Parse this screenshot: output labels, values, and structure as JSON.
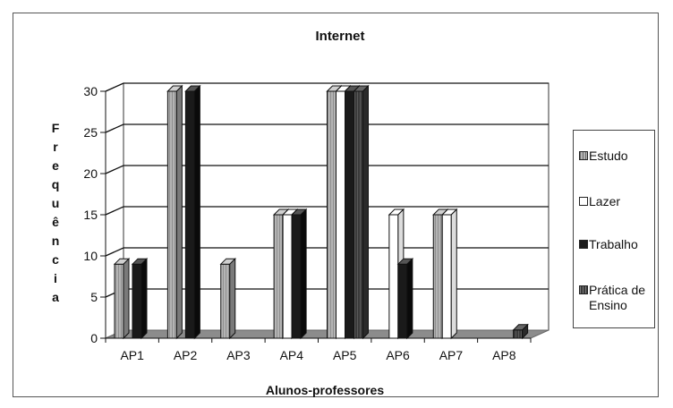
{
  "chart_data": {
    "type": "bar",
    "title": "Internet",
    "xlabel": "Alunos-professores",
    "ylabel": "Frequência",
    "categories": [
      "AP1",
      "AP2",
      "AP3",
      "AP4",
      "AP5",
      "AP6",
      "AP7",
      "AP8"
    ],
    "ylim": [
      0,
      30
    ],
    "yticks": [
      "0",
      "5",
      "10",
      "15",
      "20",
      "25",
      "30"
    ],
    "ytick_values": [
      0,
      5,
      10,
      15,
      20,
      25,
      30
    ],
    "grid": true,
    "legend_position": "right",
    "series": [
      {
        "name": "Estudo",
        "color": "#a8a8a8",
        "values": [
          9,
          30,
          9,
          15,
          30,
          0,
          15,
          0
        ]
      },
      {
        "name": "Lazer",
        "color": "#ffffff",
        "values": [
          0,
          0,
          0,
          15,
          30,
          15,
          15,
          0
        ]
      },
      {
        "name": "Trabalho",
        "color": "#202020",
        "values": [
          9,
          30,
          0,
          15,
          30,
          9,
          0,
          0
        ]
      },
      {
        "name": "Prática de Ensino",
        "color": "#4a4a4a",
        "values": [
          0,
          0,
          0,
          0,
          30,
          0,
          0,
          1
        ]
      }
    ]
  }
}
